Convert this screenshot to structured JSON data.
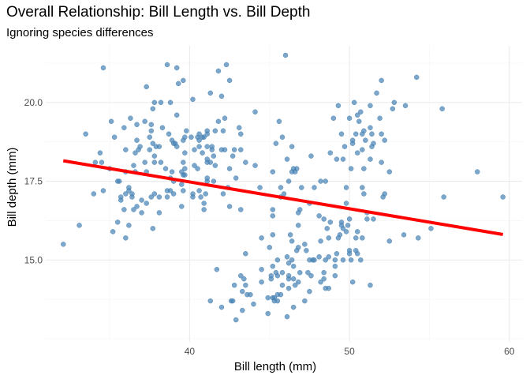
{
  "chart_data": {
    "type": "scatter",
    "title": "Overall Relationship: Bill Length vs. Bill Depth",
    "subtitle": "Ignoring species differences",
    "xlabel": "Bill length (mm)",
    "ylabel": "Bill depth (mm)",
    "xlim": [
      31.0,
      60.8
    ],
    "ylim": [
      12.4,
      21.8
    ],
    "xticks": [
      40,
      50,
      60
    ],
    "yticks": [
      15.0,
      17.5,
      20.0
    ],
    "xtick_labels": [
      "40",
      "50",
      "60"
    ],
    "ytick_labels": [
      "15.0",
      "17.5",
      "20.0"
    ],
    "grid": true,
    "point_color": "#4682b4",
    "line_color": "#ff0000",
    "regression_line": {
      "x": [
        32.1,
        59.6
      ],
      "y": [
        18.15,
        15.81
      ]
    },
    "points": [
      [
        32.1,
        15.5
      ],
      [
        33.1,
        16.1
      ],
      [
        33.5,
        19.0
      ],
      [
        34.0,
        17.1
      ],
      [
        34.1,
        18.1
      ],
      [
        34.4,
        18.4
      ],
      [
        34.5,
        18.1
      ],
      [
        34.6,
        17.2
      ],
      [
        34.6,
        21.1
      ],
      [
        35.0,
        17.9
      ],
      [
        35.1,
        19.4
      ],
      [
        35.2,
        15.9
      ],
      [
        35.3,
        18.9
      ],
      [
        35.5,
        16.2
      ],
      [
        35.5,
        17.5
      ],
      [
        35.6,
        17.5
      ],
      [
        35.7,
        16.9
      ],
      [
        35.7,
        17.0
      ],
      [
        35.9,
        16.6
      ],
      [
        35.9,
        19.2
      ],
      [
        36.0,
        15.7
      ],
      [
        36.0,
        17.1
      ],
      [
        36.0,
        17.8
      ],
      [
        36.0,
        18.5
      ],
      [
        36.2,
        16.1
      ],
      [
        36.2,
        17.2
      ],
      [
        36.2,
        17.3
      ],
      [
        36.3,
        19.5
      ],
      [
        36.4,
        17.0
      ],
      [
        36.4,
        17.1
      ],
      [
        36.5,
        16.6
      ],
      [
        36.5,
        18.0
      ],
      [
        36.6,
        17.8
      ],
      [
        36.6,
        18.4
      ],
      [
        36.7,
        16.7
      ],
      [
        36.7,
        18.8
      ],
      [
        36.7,
        19.3
      ],
      [
        36.8,
        18.5
      ],
      [
        36.9,
        18.6
      ],
      [
        37.0,
        16.5
      ],
      [
        37.0,
        16.9
      ],
      [
        37.2,
        18.1
      ],
      [
        37.2,
        19.4
      ],
      [
        37.3,
        16.8
      ],
      [
        37.3,
        17.8
      ],
      [
        37.3,
        20.5
      ],
      [
        37.5,
        18.5
      ],
      [
        37.5,
        18.9
      ],
      [
        37.6,
        17.0
      ],
      [
        37.6,
        19.1
      ],
      [
        37.6,
        19.3
      ],
      [
        37.7,
        16.0
      ],
      [
        37.7,
        18.7
      ],
      [
        37.7,
        19.8
      ],
      [
        37.8,
        17.1
      ],
      [
        37.8,
        18.1
      ],
      [
        37.8,
        18.3
      ],
      [
        37.8,
        20.0
      ],
      [
        37.9,
        18.6
      ],
      [
        38.1,
        16.5
      ],
      [
        38.1,
        17.0
      ],
      [
        38.1,
        18.6
      ],
      [
        38.2,
        18.1
      ],
      [
        38.2,
        20.0
      ],
      [
        38.3,
        19.2
      ],
      [
        38.5,
        17.9
      ],
      [
        38.6,
        17.0
      ],
      [
        38.6,
        17.2
      ],
      [
        38.6,
        21.2
      ],
      [
        38.7,
        19.0
      ],
      [
        38.8,
        17.2
      ],
      [
        38.8,
        17.6
      ],
      [
        38.8,
        20.0
      ],
      [
        38.9,
        17.8
      ],
      [
        38.9,
        18.8
      ],
      [
        39.0,
        17.1
      ],
      [
        39.0,
        17.5
      ],
      [
        39.0,
        18.7
      ],
      [
        39.1,
        18.7
      ],
      [
        39.2,
        18.6
      ],
      [
        39.2,
        19.6
      ],
      [
        39.2,
        21.1
      ],
      [
        39.3,
        20.6
      ],
      [
        39.5,
        16.7
      ],
      [
        39.5,
        17.4
      ],
      [
        39.5,
        17.8
      ],
      [
        39.6,
        17.2
      ],
      [
        39.6,
        17.7
      ],
      [
        39.6,
        18.1
      ],
      [
        39.6,
        18.8
      ],
      [
        39.6,
        20.7
      ],
      [
        39.7,
        17.7
      ],
      [
        39.7,
        17.9
      ],
      [
        39.7,
        18.4
      ],
      [
        39.7,
        18.9
      ],
      [
        39.8,
        19.1
      ],
      [
        40.1,
        18.9
      ],
      [
        40.2,
        17.0
      ],
      [
        40.2,
        17.1
      ],
      [
        40.2,
        20.1
      ],
      [
        40.3,
        18.0
      ],
      [
        40.3,
        18.5
      ],
      [
        40.5,
        17.9
      ],
      [
        40.5,
        18.9
      ],
      [
        40.6,
        17.2
      ],
      [
        40.6,
        18.6
      ],
      [
        40.6,
        18.8
      ],
      [
        40.6,
        19.0
      ],
      [
        40.7,
        17.0
      ],
      [
        40.8,
        18.4
      ],
      [
        40.8,
        18.9
      ],
      [
        40.9,
        16.6
      ],
      [
        40.9,
        16.8
      ],
      [
        40.9,
        18.9
      ],
      [
        41.0,
        17.1
      ],
      [
        41.1,
        17.5
      ],
      [
        41.1,
        17.6
      ],
      [
        41.1,
        18.1
      ],
      [
        41.1,
        18.2
      ],
      [
        41.1,
        18.6
      ],
      [
        41.1,
        19.0
      ],
      [
        41.1,
        19.1
      ],
      [
        41.3,
        13.7
      ],
      [
        41.3,
        18.1
      ],
      [
        41.3,
        20.3
      ],
      [
        41.4,
        18.5
      ],
      [
        41.4,
        18.6
      ],
      [
        41.5,
        17.5
      ],
      [
        41.5,
        18.3
      ],
      [
        41.6,
        18.0
      ],
      [
        41.6,
        19.1
      ],
      [
        41.7,
        14.7
      ],
      [
        41.8,
        19.4
      ],
      [
        41.8,
        21.0
      ],
      [
        42.0,
        13.5
      ],
      [
        42.0,
        18.5
      ],
      [
        42.0,
        20.2
      ],
      [
        42.1,
        17.1
      ],
      [
        42.1,
        19.1
      ],
      [
        42.2,
        18.5
      ],
      [
        42.2,
        19.5
      ],
      [
        42.3,
        21.2
      ],
      [
        42.4,
        17.3
      ],
      [
        42.5,
        16.7
      ],
      [
        42.5,
        17.9
      ],
      [
        42.5,
        20.7
      ],
      [
        42.6,
        13.7
      ],
      [
        42.7,
        13.7
      ],
      [
        42.7,
        18.3
      ],
      [
        42.8,
        14.2
      ],
      [
        42.8,
        18.5
      ],
      [
        42.9,
        13.1
      ],
      [
        42.9,
        17.6
      ],
      [
        43.1,
        19.2
      ],
      [
        43.2,
        14.5
      ],
      [
        43.2,
        16.6
      ],
      [
        43.2,
        18.5
      ],
      [
        43.2,
        19.0
      ],
      [
        43.3,
        13.4
      ],
      [
        43.3,
        14.0
      ],
      [
        43.4,
        14.4
      ],
      [
        43.5,
        14.2
      ],
      [
        43.5,
        15.2
      ],
      [
        43.5,
        18.1
      ],
      [
        43.6,
        13.9
      ],
      [
        43.8,
        13.9
      ],
      [
        44.0,
        13.6
      ],
      [
        44.1,
        18.0
      ],
      [
        44.1,
        19.7
      ],
      [
        44.4,
        17.3
      ],
      [
        44.5,
        14.3
      ],
      [
        44.5,
        14.7
      ],
      [
        44.5,
        15.7
      ],
      [
        44.9,
        13.3
      ],
      [
        44.9,
        13.8
      ],
      [
        45.0,
        15.4
      ],
      [
        45.1,
        14.4
      ],
      [
        45.1,
        14.5
      ],
      [
        45.2,
        13.8
      ],
      [
        45.2,
        14.8
      ],
      [
        45.2,
        15.8
      ],
      [
        45.2,
        16.4
      ],
      [
        45.2,
        16.6
      ],
      [
        45.2,
        17.8
      ],
      [
        45.3,
        13.7
      ],
      [
        45.3,
        13.8
      ],
      [
        45.4,
        14.6
      ],
      [
        45.4,
        18.7
      ],
      [
        45.5,
        13.7
      ],
      [
        45.5,
        13.9
      ],
      [
        45.5,
        14.5
      ],
      [
        45.5,
        15.0
      ],
      [
        45.6,
        19.4
      ],
      [
        45.7,
        13.9
      ],
      [
        45.7,
        17.0
      ],
      [
        45.7,
        17.3
      ],
      [
        45.8,
        14.2
      ],
      [
        45.8,
        14.6
      ],
      [
        45.8,
        18.9
      ],
      [
        45.9,
        17.1
      ],
      [
        46.0,
        21.5
      ],
      [
        46.1,
        13.2
      ],
      [
        46.1,
        15.1
      ],
      [
        46.1,
        18.2
      ],
      [
        46.2,
        14.1
      ],
      [
        46.2,
        14.4
      ],
      [
        46.2,
        14.5
      ],
      [
        46.2,
        14.9
      ],
      [
        46.2,
        17.5
      ],
      [
        46.3,
        15.8
      ],
      [
        46.4,
        15.0
      ],
      [
        46.4,
        15.6
      ],
      [
        46.4,
        17.8
      ],
      [
        46.4,
        18.6
      ],
      [
        46.5,
        13.5
      ],
      [
        46.5,
        14.4
      ],
      [
        46.5,
        14.8
      ],
      [
        46.5,
        17.9
      ],
      [
        46.6,
        14.2
      ],
      [
        46.6,
        17.8
      ],
      [
        46.7,
        15.3
      ],
      [
        46.7,
        17.9
      ],
      [
        46.8,
        14.3
      ],
      [
        46.8,
        15.4
      ],
      [
        46.8,
        16.1
      ],
      [
        46.8,
        16.5
      ],
      [
        46.9,
        14.6
      ],
      [
        46.9,
        16.6
      ],
      [
        47.0,
        17.3
      ],
      [
        47.2,
        13.7
      ],
      [
        47.2,
        15.5
      ],
      [
        47.3,
        15.3
      ],
      [
        47.4,
        14.6
      ],
      [
        47.5,
        14.0
      ],
      [
        47.5,
        15.0
      ],
      [
        47.5,
        16.8
      ],
      [
        47.6,
        14.5
      ],
      [
        47.6,
        18.3
      ],
      [
        47.7,
        15.0
      ],
      [
        47.8,
        15.0
      ],
      [
        47.8,
        17.3
      ],
      [
        48.1,
        15.1
      ],
      [
        48.1,
        16.4
      ],
      [
        48.2,
        14.3
      ],
      [
        48.2,
        15.6
      ],
      [
        48.2,
        17.5
      ],
      [
        48.4,
        14.4
      ],
      [
        48.4,
        14.6
      ],
      [
        48.4,
        16.3
      ],
      [
        48.5,
        14.1
      ],
      [
        48.5,
        15.0
      ],
      [
        48.5,
        17.5
      ],
      [
        48.6,
        16.0
      ],
      [
        48.7,
        14.1
      ],
      [
        48.7,
        15.1
      ],
      [
        48.7,
        15.7
      ],
      [
        48.8,
        16.2
      ],
      [
        48.8,
        18.4
      ],
      [
        49.0,
        19.5
      ],
      [
        49.1,
        14.5
      ],
      [
        49.1,
        14.8
      ],
      [
        49.1,
        15.0
      ],
      [
        49.2,
        15.2
      ],
      [
        49.2,
        18.2
      ],
      [
        49.3,
        15.7
      ],
      [
        49.3,
        19.9
      ],
      [
        49.4,
        15.8
      ],
      [
        49.5,
        16.1
      ],
      [
        49.5,
        16.2
      ],
      [
        49.5,
        19.0
      ],
      [
        49.6,
        15.0
      ],
      [
        49.6,
        16.0
      ],
      [
        49.6,
        18.2
      ],
      [
        49.7,
        18.6
      ],
      [
        49.8,
        15.9
      ],
      [
        49.8,
        16.8
      ],
      [
        49.8,
        17.3
      ],
      [
        49.9,
        16.1
      ],
      [
        50.0,
        15.2
      ],
      [
        50.0,
        15.3
      ],
      [
        50.0,
        16.3
      ],
      [
        50.0,
        19.5
      ],
      [
        50.1,
        15.0
      ],
      [
        50.1,
        17.9
      ],
      [
        50.2,
        14.3
      ],
      [
        50.2,
        18.7
      ],
      [
        50.2,
        18.8
      ],
      [
        50.3,
        20.0
      ],
      [
        50.4,
        15.3
      ],
      [
        50.4,
        15.7
      ],
      [
        50.4,
        19.0
      ],
      [
        50.5,
        15.2
      ],
      [
        50.5,
        15.9
      ],
      [
        50.5,
        18.4
      ],
      [
        50.5,
        19.6
      ],
      [
        50.6,
        19.4
      ],
      [
        50.7,
        15.0
      ],
      [
        50.7,
        19.7
      ],
      [
        50.8,
        15.7
      ],
      [
        50.8,
        17.3
      ],
      [
        50.8,
        18.5
      ],
      [
        50.8,
        19.0
      ],
      [
        50.9,
        17.1
      ],
      [
        50.9,
        17.9
      ],
      [
        50.9,
        19.1
      ],
      [
        51.0,
        18.8
      ],
      [
        51.1,
        16.3
      ],
      [
        51.1,
        16.5
      ],
      [
        51.3,
        14.2
      ],
      [
        51.3,
        18.2
      ],
      [
        51.3,
        19.2
      ],
      [
        51.3,
        19.9
      ],
      [
        51.4,
        18.6
      ],
      [
        51.4,
        19.0
      ],
      [
        51.5,
        16.3
      ],
      [
        51.5,
        18.7
      ],
      [
        51.7,
        20.3
      ],
      [
        51.9,
        19.5
      ],
      [
        52.0,
        18.1
      ],
      [
        52.0,
        19.0
      ],
      [
        52.0,
        20.7
      ],
      [
        52.1,
        17.0
      ],
      [
        52.2,
        17.1
      ],
      [
        52.2,
        18.8
      ],
      [
        52.5,
        15.6
      ],
      [
        52.5,
        17.8
      ],
      [
        52.7,
        19.8
      ],
      [
        52.8,
        20.0
      ],
      [
        53.4,
        15.8
      ],
      [
        53.5,
        19.9
      ],
      [
        54.2,
        20.8
      ],
      [
        54.3,
        15.7
      ],
      [
        55.1,
        16.0
      ],
      [
        55.8,
        19.8
      ],
      [
        55.9,
        17.0
      ],
      [
        58.0,
        17.8
      ],
      [
        59.6,
        17.0
      ]
    ]
  }
}
